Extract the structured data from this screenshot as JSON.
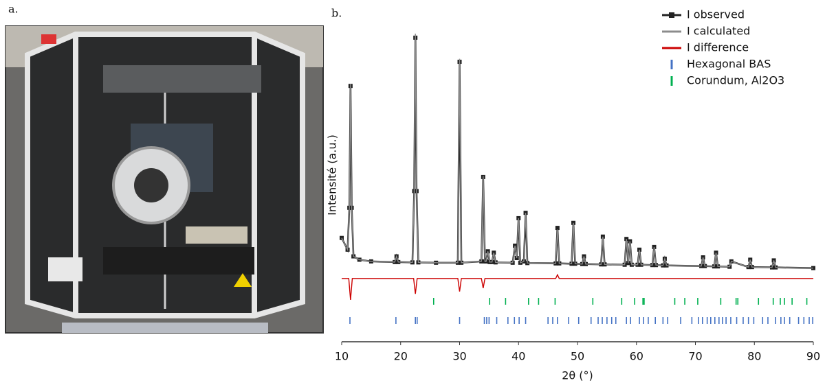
{
  "panel_labels": [
    "a.",
    "b."
  ],
  "chart_data": {
    "type": "line",
    "xlabel": "2θ (°)",
    "ylabel": "Intensité (a.u.)",
    "xlim": [
      10,
      90
    ],
    "xticks": [
      10,
      20,
      30,
      40,
      50,
      60,
      70,
      80,
      90
    ],
    "ylim": [
      0,
      100
    ],
    "legend": "upper right",
    "series": [
      {
        "name": "I observed",
        "color": "#222222",
        "style": "line-square",
        "x": [
          10,
          11,
          11.3,
          11.5,
          11.7,
          12,
          13,
          15,
          19,
          19.3,
          19.6,
          22,
          22.3,
          22.5,
          22.7,
          23,
          26,
          29.7,
          30,
          30.3,
          33.7,
          34,
          34.3,
          34.5,
          34.8,
          35.1,
          35.5,
          35.8,
          36.1,
          39,
          39.4,
          39.7,
          40,
          40.3,
          40.9,
          41.2,
          41.5,
          46.3,
          46.6,
          46.9,
          49,
          49.3,
          49.6,
          50.8,
          51.1,
          51.4,
          54,
          54.3,
          54.6,
          58,
          58.3,
          58.6,
          58.9,
          59.2,
          60.2,
          60.5,
          60.8,
          62.7,
          63,
          63.3,
          64.5,
          64.8,
          65.1,
          71,
          71.3,
          71.6,
          73.2,
          73.5,
          73.8,
          75.8,
          76.1,
          79,
          79.3,
          79.6,
          83,
          83.3,
          83.6,
          90
        ],
        "values": [
          31,
          27.5,
          40,
          76.4,
          40,
          25.5,
          24.5,
          24,
          23.8,
          25.5,
          23.8,
          23.7,
          45,
          90.8,
          45,
          23.7,
          23.6,
          23.6,
          83.6,
          23.6,
          24,
          49.2,
          24,
          24,
          27,
          23.8,
          23.8,
          26.6,
          23.7,
          23.6,
          28.7,
          25,
          36.9,
          23.6,
          24,
          38.5,
          23.5,
          23.4,
          34,
          23.4,
          23.3,
          35.5,
          23.3,
          23.2,
          25.5,
          23.2,
          23.1,
          31.4,
          23.1,
          23,
          30.7,
          23.5,
          30,
          23,
          23,
          27.5,
          23,
          22.9,
          28.3,
          22.9,
          22.8,
          24.8,
          22.8,
          22.6,
          25.2,
          22.6,
          22.5,
          26.6,
          22.5,
          22.4,
          24,
          22.3,
          24.5,
          22.3,
          22.2,
          24.3,
          22.2,
          22
        ]
      },
      {
        "name": "I calculated",
        "color": "#8c8c8c",
        "style": "line",
        "x": [
          10,
          11,
          11.3,
          11.5,
          11.7,
          12,
          13,
          15,
          19,
          19.3,
          19.6,
          22,
          22.3,
          22.5,
          22.7,
          23,
          26,
          29.7,
          30,
          30.3,
          33.7,
          34,
          34.3,
          34.5,
          34.8,
          35.1,
          35.5,
          35.8,
          36.1,
          39,
          39.4,
          39.7,
          40,
          40.3,
          40.9,
          41.2,
          41.5,
          46.3,
          46.6,
          46.9,
          49,
          49.3,
          49.6,
          50.8,
          51.1,
          51.4,
          54,
          54.3,
          54.6,
          58,
          58.3,
          58.6,
          58.9,
          59.2,
          60.2,
          60.5,
          60.8,
          62.7,
          63,
          63.3,
          64.5,
          64.8,
          65.1,
          71,
          71.3,
          71.6,
          73.2,
          73.5,
          73.8,
          75.8,
          76.1,
          79,
          79.3,
          79.6,
          83,
          83.3,
          83.6,
          90
        ],
        "values": [
          31,
          27.5,
          40,
          77,
          40,
          25.5,
          24.5,
          24,
          23.8,
          25.5,
          23.8,
          23.7,
          45,
          92,
          45,
          23.7,
          23.6,
          23.6,
          84.5,
          23.6,
          24,
          49.5,
          24,
          24,
          27,
          23.8,
          23.8,
          26.6,
          23.7,
          23.6,
          28.7,
          25,
          36.9,
          23.6,
          24,
          38.5,
          23.5,
          23.4,
          33.5,
          23.4,
          23.3,
          35.5,
          23.3,
          23.2,
          25.5,
          23.2,
          23.1,
          31.4,
          23.1,
          23,
          30.7,
          23.5,
          30,
          23,
          23,
          27.5,
          23,
          22.9,
          28.3,
          22.9,
          22.8,
          24.8,
          22.8,
          22.6,
          25.2,
          22.6,
          22.5,
          26.6,
          22.5,
          22.4,
          24,
          22.3,
          24.5,
          22.3,
          22.2,
          24.3,
          22.2,
          22
        ]
      },
      {
        "name": "I difference",
        "color": "#cc0000",
        "style": "line",
        "x": [
          10,
          11.2,
          11.5,
          11.8,
          22.2,
          22.5,
          22.8,
          29.7,
          30,
          30.3,
          33.7,
          34,
          34.3,
          46.3,
          46.6,
          46.9,
          90
        ],
        "values": [
          18.9,
          18.9,
          12.5,
          18.9,
          18.9,
          14.3,
          18.9,
          18.9,
          15,
          18.9,
          18.9,
          16,
          18.9,
          18.9,
          20,
          18.9,
          18.9
        ]
      },
      {
        "name": "Hexagonal BAS",
        "color": "#4472c4",
        "style": "tick",
        "x": [
          11.4,
          19.2,
          22.5,
          22.8,
          30,
          34.2,
          34.6,
          35,
          36.3,
          38.2,
          39.3,
          40.1,
          41.2,
          45,
          45.8,
          46.6,
          48.5,
          50.2,
          52.3,
          53.5,
          54.2,
          55,
          55.8,
          56.5,
          58.3,
          59,
          60.5,
          61.2,
          62,
          63.2,
          64.5,
          65.3,
          67.5,
          69.4,
          70.5,
          71.2,
          72,
          72.6,
          73.3,
          74,
          74.6,
          75.2,
          76,
          77,
          78.1,
          79,
          79.9,
          81.4,
          82.3,
          83.6,
          84.5,
          85.1,
          86,
          87.5,
          88.4,
          89.3,
          89.9
        ]
      },
      {
        "name": "Corundum, Al2O3",
        "color": "#00b050",
        "style": "tick",
        "x": [
          25.6,
          35.1,
          37.8,
          41.7,
          43.4,
          46.2,
          52.6,
          57.5,
          59.7,
          61.1,
          61.3,
          66.5,
          68.2,
          70.4,
          74.3,
          76.9,
          77.2,
          80.7,
          83.2,
          84.4,
          85.1,
          86.4,
          88.9
        ]
      }
    ]
  }
}
